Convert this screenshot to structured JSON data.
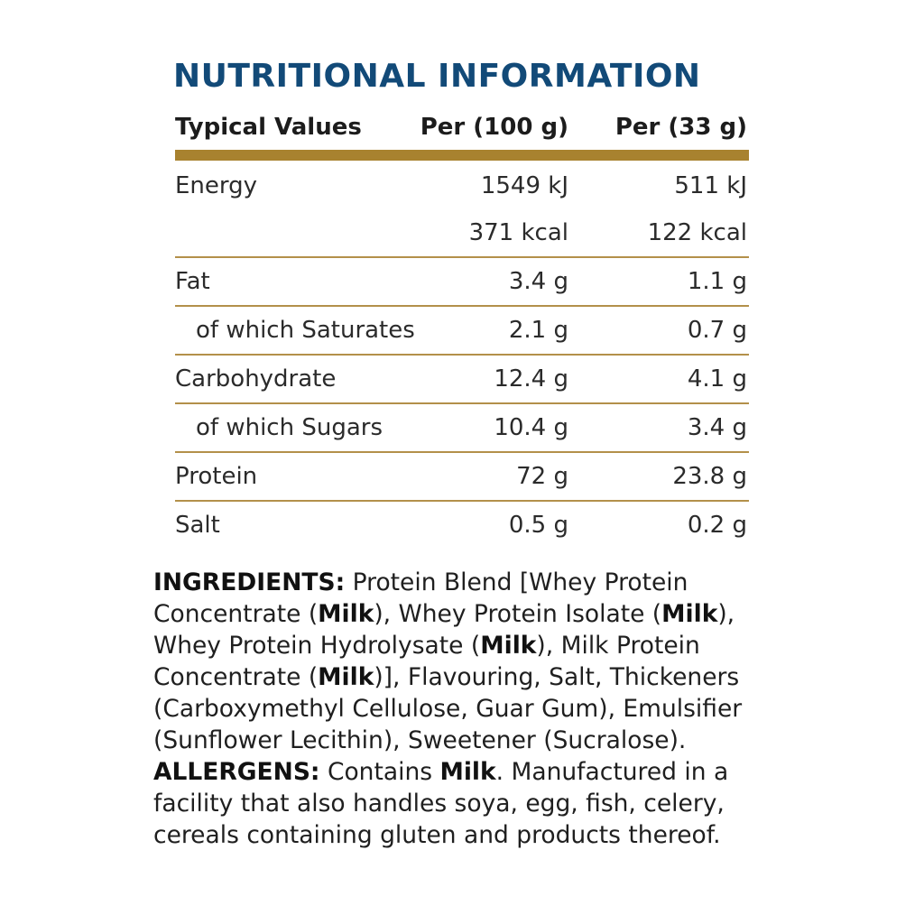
{
  "title": "NUTRITIONAL INFORMATION",
  "table": {
    "headers": [
      "Typical Values",
      "Per (100 g)",
      "Per (33 g)"
    ],
    "rows": [
      {
        "label": "Energy",
        "per100": "1549 kJ",
        "perServing": "511 kJ"
      },
      {
        "label": "",
        "per100": "371 kcal",
        "perServing": "122 kcal"
      },
      {
        "label": "Fat",
        "per100": "3.4 g",
        "perServing": "1.1 g"
      },
      {
        "label": "of which Saturates",
        "per100": "2.1 g",
        "perServing": "0.7 g"
      },
      {
        "label": "Carbohydrate",
        "per100": "12.4 g",
        "perServing": "4.1 g"
      },
      {
        "label": "of which Sugars",
        "per100": "10.4 g",
        "perServing": "3.4 g"
      },
      {
        "label": "Protein",
        "per100": "72 g",
        "perServing": "23.8 g"
      },
      {
        "label": "Salt",
        "per100": "0.5 g",
        "perServing": "0.2 g"
      }
    ]
  },
  "ingredients": {
    "heading": "INGREDIENTS:",
    "t1": " Protein Blend [Whey Protein Concentrate (",
    "milk1": "Milk",
    "t2": "), Whey Protein Isolate (",
    "milk2": "Milk",
    "t3": "), Whey Protein Hydrolysate (",
    "milk3": "Milk",
    "t4": "), Milk Protein Concentrate (",
    "milk4": "Milk",
    "t5": ")], Flavouring, Salt, Thickeners (Carboxymethyl Cellulose, Guar Gum), Emulsifier (Sunflower Lecithin), Sweetener (Sucralose). ",
    "allergens_heading": "ALLERGENS:",
    "t6": " Contains ",
    "milk5": "Milk",
    "t7": ". Manufactured in a facility that also handles soya, egg, fish, celery, cereals containing gluten and products thereof."
  },
  "colors": {
    "title": "#124a78",
    "rule_gold": "#a8822f"
  }
}
